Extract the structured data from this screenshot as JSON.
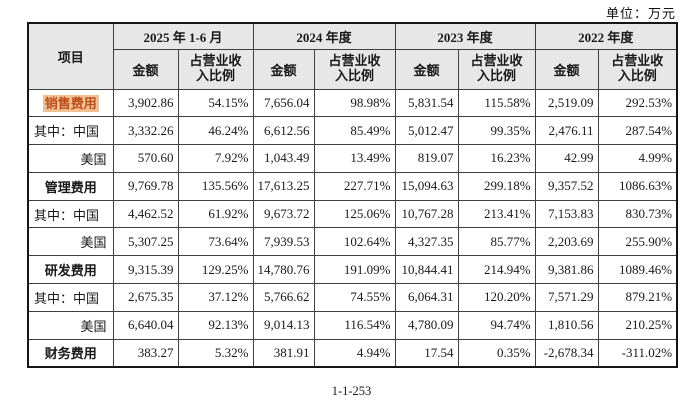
{
  "unit_label": "单位：万元",
  "page_number": "1-1-253",
  "colors": {
    "header_bg": "#e7e7e7",
    "highlight_text": "#bc4f1c",
    "highlight_bg": "#f3c094",
    "border": "#3f3f3f"
  },
  "table": {
    "item_header": "项目",
    "amount_header": "金额",
    "ratio_header": "占营业收\n入比例",
    "period_groups": [
      "2025 年 1-6 月",
      "2024 年度",
      "2023 年度",
      "2022 年度"
    ],
    "rows": [
      {
        "label": "销售费用",
        "align": "center",
        "bold": true,
        "highlight": true,
        "values": [
          "3,902.86",
          "54.15%",
          "7,656.04",
          "98.98%",
          "5,831.54",
          "115.58%",
          "2,519.09",
          "292.53%"
        ]
      },
      {
        "label": "其中：中国",
        "align": "left",
        "bold": false,
        "highlight": false,
        "values": [
          "3,332.26",
          "46.24%",
          "6,612.56",
          "85.49%",
          "5,012.47",
          "99.35%",
          "2,476.11",
          "287.54%"
        ]
      },
      {
        "label": "美国",
        "align": "right",
        "bold": false,
        "highlight": false,
        "values": [
          "570.60",
          "7.92%",
          "1,043.49",
          "13.49%",
          "819.07",
          "16.23%",
          "42.99",
          "4.99%"
        ]
      },
      {
        "label": "管理费用",
        "align": "center",
        "bold": true,
        "highlight": false,
        "values": [
          "9,769.78",
          "135.56%",
          "17,613.25",
          "227.71%",
          "15,094.63",
          "299.18%",
          "9,357.52",
          "1086.63%"
        ]
      },
      {
        "label": "其中：中国",
        "align": "left",
        "bold": false,
        "highlight": false,
        "values": [
          "4,462.52",
          "61.92%",
          "9,673.72",
          "125.06%",
          "10,767.28",
          "213.41%",
          "7,153.83",
          "830.73%"
        ]
      },
      {
        "label": "美国",
        "align": "right",
        "bold": false,
        "highlight": false,
        "values": [
          "5,307.25",
          "73.64%",
          "7,939.53",
          "102.64%",
          "4,327.35",
          "85.77%",
          "2,203.69",
          "255.90%"
        ]
      },
      {
        "label": "研发费用",
        "align": "center",
        "bold": true,
        "highlight": false,
        "values": [
          "9,315.39",
          "129.25%",
          "14,780.76",
          "191.09%",
          "10,844.41",
          "214.94%",
          "9,381.86",
          "1089.46%"
        ]
      },
      {
        "label": "其中：中国",
        "align": "left",
        "bold": false,
        "highlight": false,
        "values": [
          "2,675.35",
          "37.12%",
          "5,766.62",
          "74.55%",
          "6,064.31",
          "120.20%",
          "7,571.29",
          "879.21%"
        ]
      },
      {
        "label": "美国",
        "align": "right",
        "bold": false,
        "highlight": false,
        "values": [
          "6,640.04",
          "92.13%",
          "9,014.13",
          "116.54%",
          "4,780.09",
          "94.74%",
          "1,810.56",
          "210.25%"
        ]
      },
      {
        "label": "财务费用",
        "align": "center",
        "bold": true,
        "highlight": false,
        "values": [
          "383.27",
          "5.32%",
          "381.91",
          "4.94%",
          "17.54",
          "0.35%",
          "-2,678.34",
          "-311.02%"
        ]
      }
    ]
  }
}
